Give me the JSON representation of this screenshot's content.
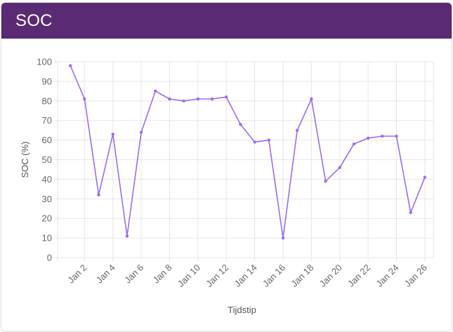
{
  "card": {
    "title": "SOC"
  },
  "colors": {
    "header_bg": "#5b2a74",
    "line": "#9b6bf2",
    "grid": "#e6e6e6"
  },
  "chart_data": {
    "type": "line",
    "title": "",
    "xlabel": "Tijdstip",
    "ylabel": "SOC (%)",
    "ylim": [
      0,
      100
    ],
    "yticks": [
      0,
      10,
      20,
      30,
      40,
      50,
      60,
      70,
      80,
      90,
      100
    ],
    "ytick_labels": [
      "0",
      "10",
      "20",
      "30",
      "40",
      "50",
      "60",
      "70",
      "80",
      "90",
      "100"
    ],
    "xlim_days": [
      0.1,
      26.6
    ],
    "xtick_days": [
      2,
      4,
      6,
      8,
      10,
      12,
      14,
      16,
      18,
      20,
      22,
      24,
      26
    ],
    "xtick_labels": [
      "Jan 2",
      "Jan 4",
      "Jan 6",
      "Jan 8",
      "Jan 10",
      "Jan 12",
      "Jan 14",
      "Jan 16",
      "Jan 18",
      "Jan 20",
      "Jan 22",
      "Jan 24",
      "Jan 26"
    ],
    "grid": true,
    "series": [
      {
        "x_days": [
          1,
          2,
          3,
          4,
          5,
          6,
          7,
          8,
          9,
          10,
          11,
          12,
          13,
          14,
          15,
          16,
          17,
          18,
          19,
          20,
          21,
          22,
          23,
          24,
          25,
          26
        ],
        "values": [
          98,
          81,
          32,
          63,
          11,
          64,
          85,
          81,
          80,
          81,
          81,
          82,
          68,
          59,
          60,
          10,
          65,
          81,
          39,
          46,
          58,
          61,
          62,
          62,
          23,
          41
        ]
      }
    ]
  }
}
